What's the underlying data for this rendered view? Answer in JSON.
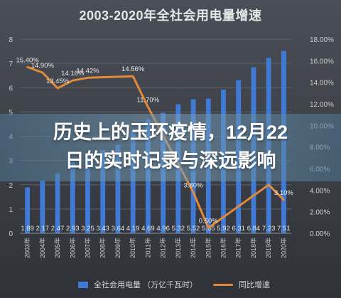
{
  "chart_data": {
    "type": "bar+line",
    "title": "2003-2020年全社会用电量增速",
    "categories": [
      "2003年",
      "2004年",
      "2005年",
      "2006年",
      "2007年",
      "2008年",
      "2009年",
      "2010年",
      "2011年",
      "2012年",
      "2013年",
      "2014年",
      "2015年",
      "2016年",
      "2017年",
      "2018年",
      "2019年",
      "2020年"
    ],
    "bar_series": {
      "name": "全社会用电量（万亿千瓦时）",
      "values": [
        1.89,
        2.17,
        2.47,
        2.93,
        3.25,
        3.43,
        3.64,
        4.19,
        4.69,
        4.96,
        5.32,
        5.52,
        5.55,
        5.92,
        6.31,
        6.84,
        7.23,
        7.51
      ],
      "labels": [
        "1.89",
        "2.17",
        "2.47",
        "2.93",
        "3.25",
        "3.43",
        "3.64",
        "4.19",
        "4.69",
        "4.96",
        "5.32",
        "5.52",
        "5.55",
        "5.92",
        "6.31",
        "6.84",
        "7.23",
        "7.51"
      ],
      "color": "#3f7bd6"
    },
    "line_series": {
      "name": "同比增速",
      "values": [
        15.4,
        14.9,
        13.45,
        14.16,
        14.42,
        null,
        null,
        14.56,
        11.7,
        null,
        null,
        3.8,
        0.5,
        null,
        null,
        null,
        4.5,
        3.1
      ],
      "labels": [
        "15.40%",
        "14.90%",
        "13.45%",
        "14.16%",
        "14.42%",
        "",
        "",
        "14.56%",
        "11.70%",
        "",
        "",
        "3.80%",
        "0.50%",
        "",
        "",
        "",
        "",
        "3.10%"
      ],
      "color": "#e08a3a"
    },
    "y_left": {
      "min": 0,
      "max": 8,
      "ticks": [
        "0",
        "1",
        "2",
        "3",
        "4",
        "5",
        "6",
        "7",
        "8"
      ]
    },
    "y_right": {
      "min": 0,
      "max": 18,
      "ticks": [
        "0.00%",
        "2.00%",
        "4.00%",
        "6.00%",
        "8.00%",
        "10.00%",
        "12.00%",
        "14.00%",
        "16.00%",
        "18.00%"
      ]
    },
    "grid": true,
    "legend": "bottom"
  },
  "caption": {
    "line1": "历史上的玉环疫情，12月22",
    "line2": "日的实时记录与深远影响"
  },
  "legend": {
    "bar_label": "全社会用电量  （万亿千瓦时）",
    "line_label": "同比增速"
  }
}
